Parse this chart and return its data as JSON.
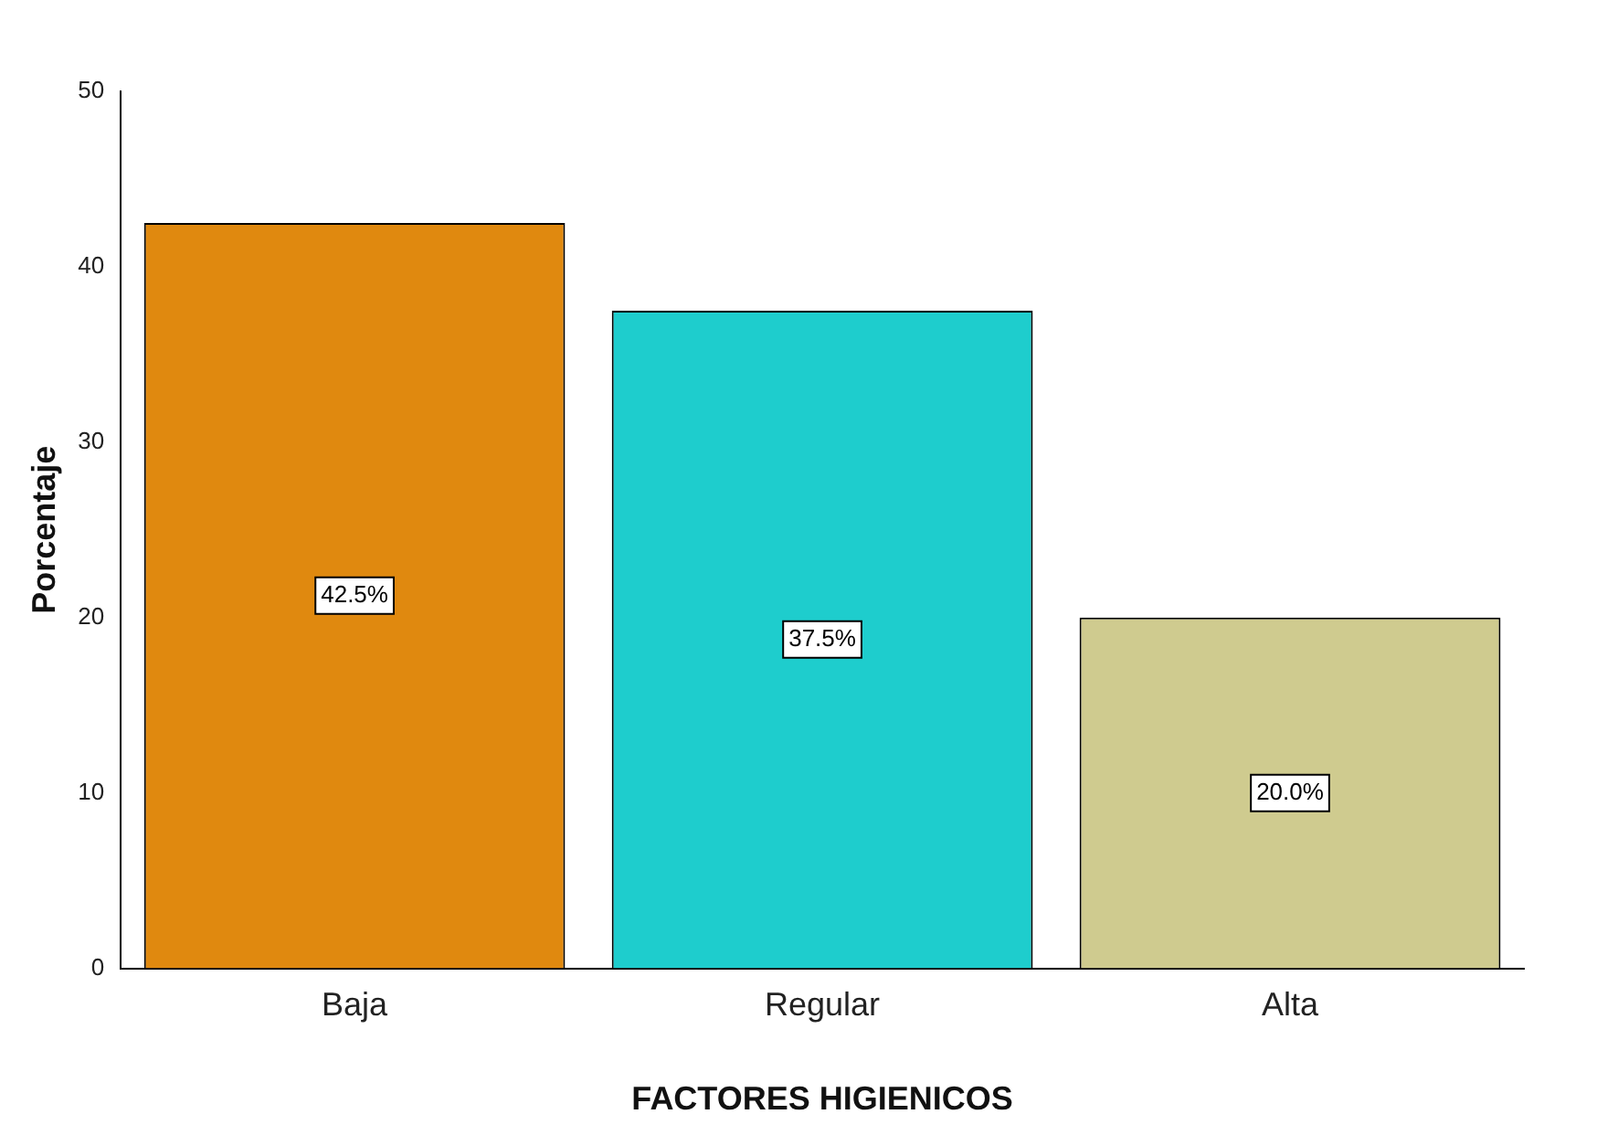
{
  "chart_data": {
    "type": "bar",
    "xlabel": "FACTORES HIGIENICOS",
    "ylabel": "Porcentaje",
    "categories": [
      "Baja",
      "Regular",
      "Alta"
    ],
    "values": [
      42.5,
      37.5,
      20.0
    ],
    "colors": [
      "#e0890f",
      "#1ecdcd",
      "#cfcb8f"
    ],
    "value_labels": [
      "42.5%",
      "37.5%",
      "20.0%"
    ],
    "ylim": [
      0,
      50
    ],
    "yticks": [
      0,
      10,
      20,
      30,
      40,
      50
    ],
    "grid": false,
    "legend": false
  }
}
